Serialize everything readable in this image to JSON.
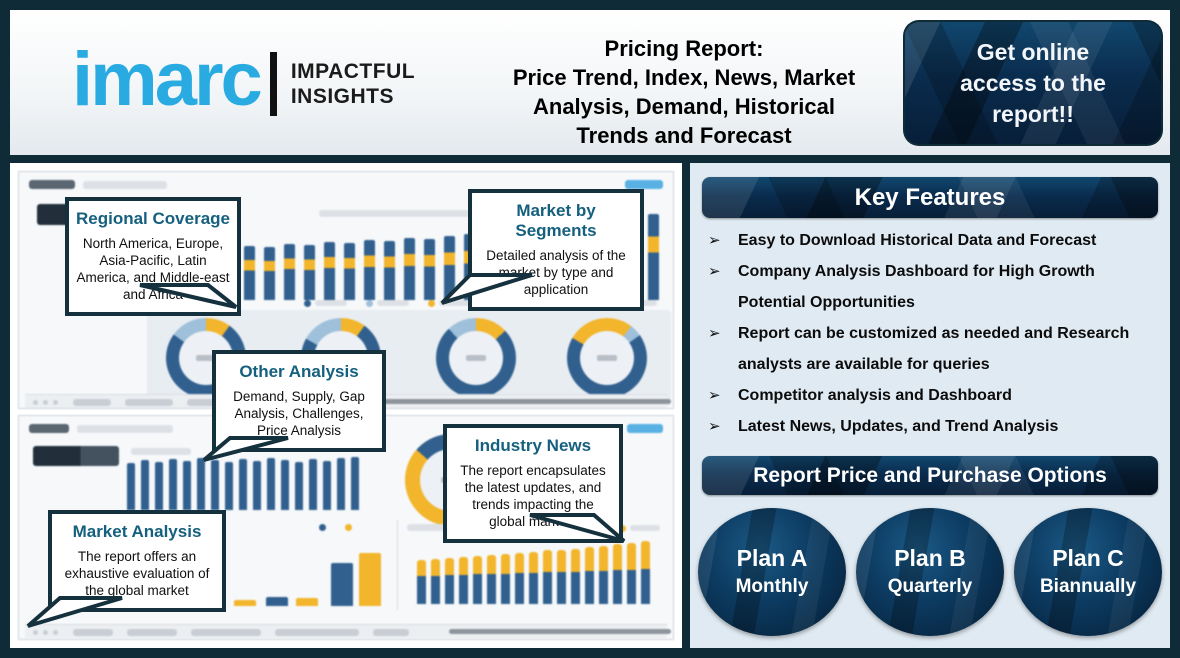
{
  "header": {
    "logo_text": "imarc",
    "tagline_line1": "IMPACTFUL",
    "tagline_line2": "INSIGHTS",
    "title_lines": [
      "Pricing Report:",
      "Price Trend, Index, News, Market",
      "Analysis, Demand, Historical",
      "Trends and Forecast"
    ],
    "cta_label": "Get online access to the report!!"
  },
  "callouts": [
    {
      "title": "Regional Coverage",
      "body": "North America, Europe, Asia-Pacific, Latin America, and Middle-east and Africa"
    },
    {
      "title": "Market by Segments",
      "body": "Detailed analysis of the market by type and application"
    },
    {
      "title": "Other Analysis",
      "body": "Demand, Supply, Gap Analysis, Challenges, Price Analysis"
    },
    {
      "title": "Industry News",
      "body": "The report encapsulates the latest updates, and trends impacting the global markets"
    },
    {
      "title": "Market Analysis",
      "body": "The report offers an exhaustive evaluation of the global market"
    }
  ],
  "key_features": {
    "title": "Key Features",
    "bullet_glyph": "➢",
    "items": [
      "Easy to Download Historical Data and Forecast",
      "Company Analysis Dashboard for High Growth Potential Opportunities",
      "Report can be customized as needed and Research analysts are available for queries",
      "Competitor analysis and Dashboard",
      "Latest News, Updates, and Trend Analysis"
    ]
  },
  "pricing": {
    "title": "Report Price and Purchase Options",
    "plans": [
      {
        "name": "Plan A",
        "period": "Monthly"
      },
      {
        "name": "Plan B",
        "period": "Quarterly"
      },
      {
        "name": "Plan C",
        "period": "Biannually"
      }
    ]
  },
  "colors": {
    "frame": "#0e2b37",
    "brand_blue": "#29abe2",
    "bar_navy": "#31608f",
    "bar_yellow": "#f2b52b",
    "donut_light": "#9fc0da",
    "callout_heading": "#15607e",
    "right_panel_bg": "#e0eaf2"
  },
  "chart_data": {
    "dashboard_top": {
      "type": "bar",
      "main_bars": [
        50,
        52,
        51,
        54,
        53,
        56,
        55,
        58,
        57,
        60,
        59,
        62,
        61,
        64,
        66
      ],
      "side_bars": [
        22,
        27,
        32,
        37,
        43,
        50,
        58,
        86
      ],
      "legend_colors": [
        "navy",
        "light",
        "yellow",
        "yellow",
        "navy",
        "light"
      ],
      "donuts": [
        {
          "yellow": 10,
          "light": 15,
          "navy": 75
        },
        {
          "yellow": 10,
          "light": 17,
          "navy": 73
        },
        {
          "yellow": 13,
          "light": 12,
          "navy": 75
        },
        {
          "yellow": 27,
          "light": 5,
          "navy": 68
        }
      ]
    },
    "dashboard_bottom": {
      "type": "bar",
      "top_bars": [
        47,
        50,
        48,
        51,
        49,
        52,
        50,
        48,
        51,
        49,
        52,
        50,
        48,
        51,
        49,
        52,
        53
      ],
      "donut": {
        "yellow": 42,
        "navy": 58
      },
      "mini_bars": [
        {
          "color": "yellow",
          "h": 6
        },
        {
          "color": "navy",
          "h": 9
        },
        {
          "color": "yellow",
          "h": 8
        },
        {
          "color": "navy",
          "h": 43
        },
        {
          "color": "yellow",
          "h": 53
        }
      ],
      "stacked_navy": [
        28,
        28,
        29,
        29,
        30,
        30,
        30,
        31,
        31,
        32,
        32,
        32,
        33,
        33,
        34,
        34,
        35
      ],
      "stacked_yellow": [
        16,
        17,
        17,
        18,
        18,
        19,
        20,
        20,
        21,
        22,
        22,
        23,
        24,
        25,
        26,
        27,
        28
      ]
    }
  }
}
